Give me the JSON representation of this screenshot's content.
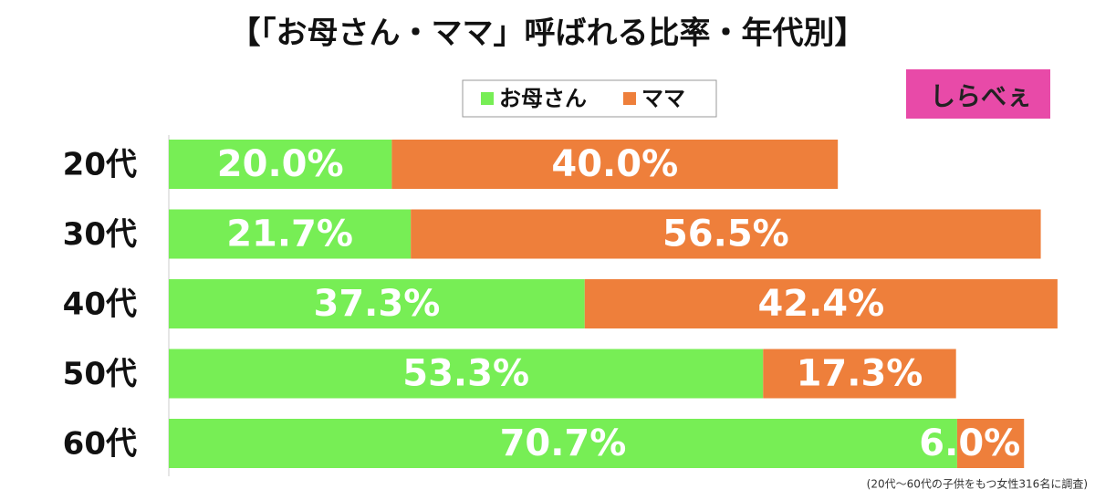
{
  "chart_data": {
    "type": "stacked-bar-horizontal",
    "title": "【「お母さん・ママ」呼ばれる比率・年代別】",
    "categories": [
      "20代",
      "30代",
      "40代",
      "50代",
      "60代"
    ],
    "series": [
      {
        "name": "お母さん",
        "color": "#77ee55",
        "values": [
          20.0,
          21.7,
          37.3,
          53.3,
          70.7
        ],
        "value_labels": [
          "20.0%",
          "21.7%",
          "37.3%",
          "53.3%",
          "70.7%"
        ]
      },
      {
        "name": "ママ",
        "color": "#ee7f3b",
        "values": [
          40.0,
          56.5,
          42.4,
          17.3,
          6.0
        ],
        "value_labels": [
          "40.0%",
          "56.5%",
          "42.4%",
          "17.3%",
          "6.0%"
        ]
      }
    ],
    "xlim": [
      0,
      82
    ],
    "legend": "top",
    "note": "(20代～60代の子供をもつ女性316名に調査)",
    "logo": "しらべぇ"
  }
}
